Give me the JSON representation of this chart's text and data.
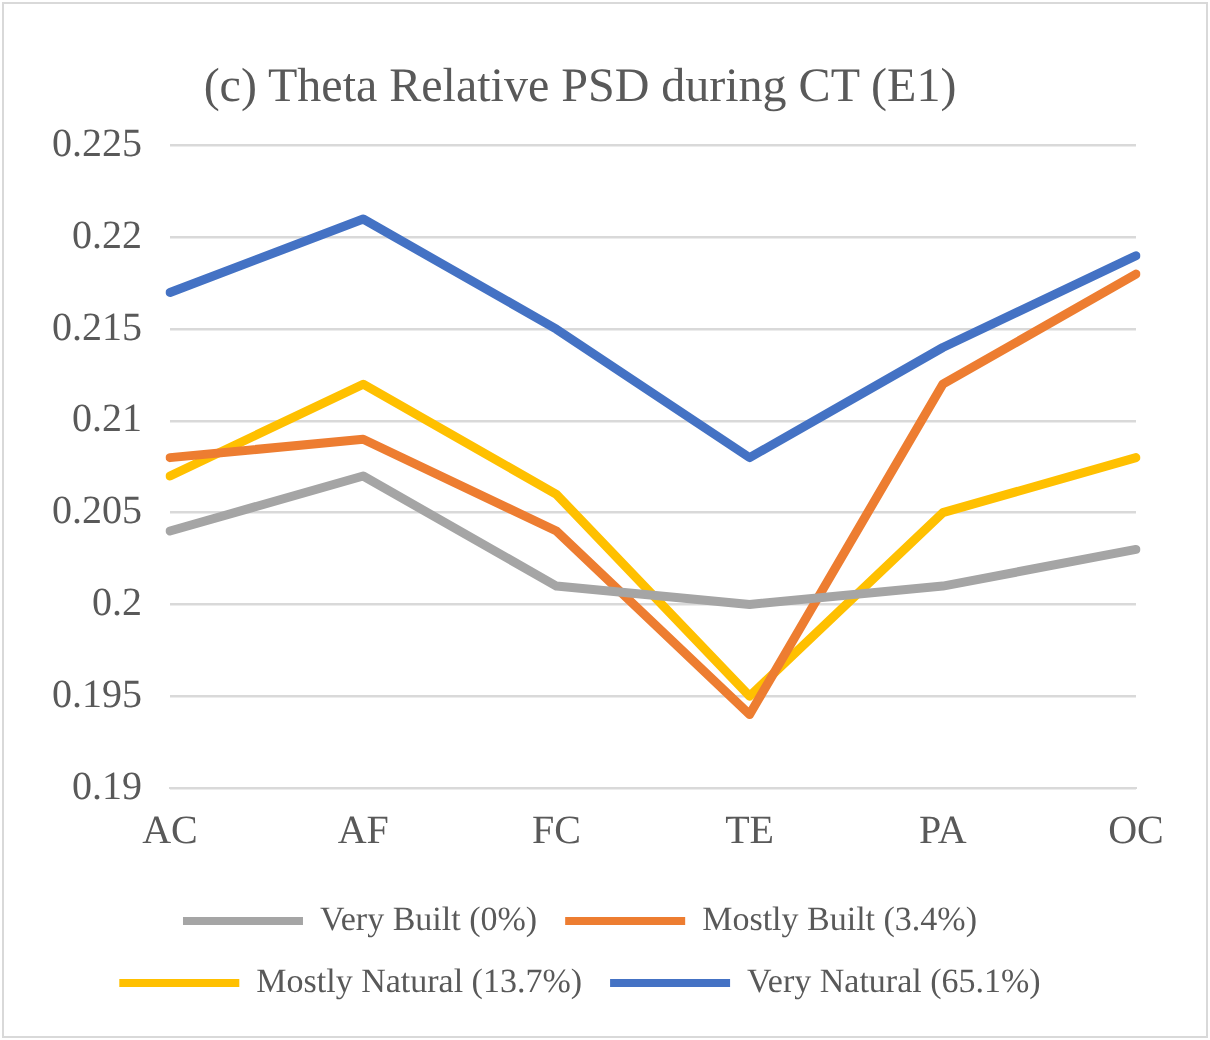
{
  "chart_data": {
    "type": "line",
    "title": "(c) Theta Relative PSD during CT (E1)",
    "categories": [
      "AC",
      "AF",
      "FC",
      "TE",
      "PA",
      "OC"
    ],
    "series": [
      {
        "name": "Very Built (0%)",
        "color": "#a5a5a5",
        "values": [
          0.204,
          0.207,
          0.201,
          0.2,
          0.201,
          0.203
        ]
      },
      {
        "name": "Mostly Built (3.4%)",
        "color": "#ed7d31",
        "values": [
          0.208,
          0.209,
          0.204,
          0.194,
          0.212,
          0.218
        ]
      },
      {
        "name": "Mostly Natural (13.7%)",
        "color": "#ffc000",
        "values": [
          0.207,
          0.212,
          0.206,
          0.195,
          0.205,
          0.208
        ]
      },
      {
        "name": "Very Natural (65.1%)",
        "color": "#4472c4",
        "values": [
          0.217,
          0.221,
          0.215,
          0.208,
          0.214,
          0.219
        ]
      }
    ],
    "ylim": [
      0.19,
      0.225
    ],
    "yticks": [
      0.19,
      0.195,
      0.2,
      0.205,
      0.21,
      0.215,
      0.22,
      0.225
    ],
    "grid": "y",
    "legend": "bottom",
    "marker": "none",
    "line_style": "solid"
  }
}
